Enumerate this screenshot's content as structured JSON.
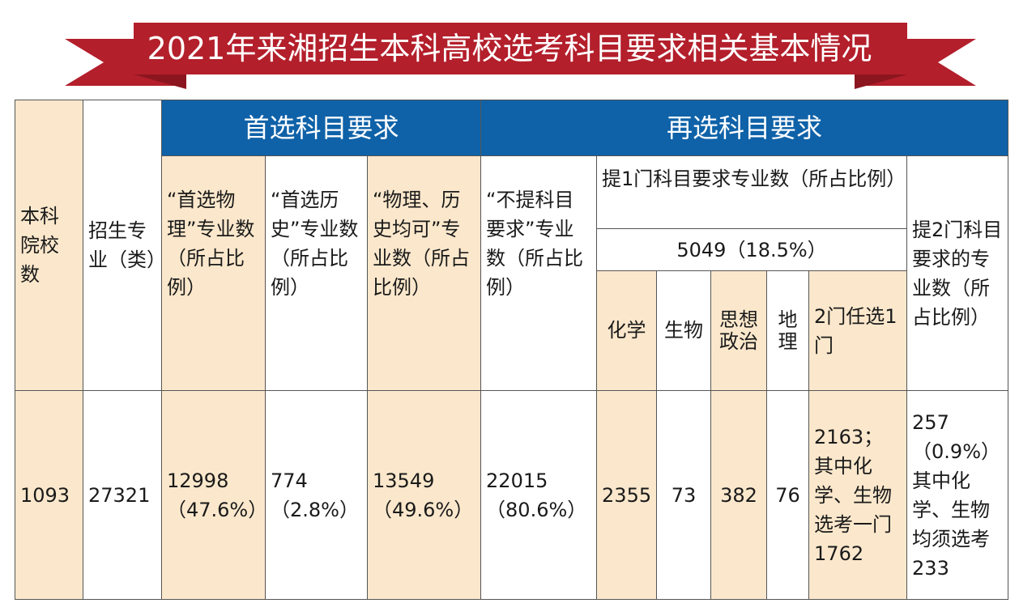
{
  "title": "2021年来湘招生本科高校选考科目要求相关基本情况",
  "colors": {
    "banner_red": "#b31f2b",
    "banner_dark": "#8c1620",
    "header_blue": "#0f62a8",
    "beige": "#fbe8cc"
  },
  "header": {
    "schools": "本科院校数",
    "majors": "招生专业（类）",
    "primary_group": "首选科目要求",
    "primary_physics": "“首选物理”专业数（所占比例）",
    "primary_history": "“首选历史”专业数（所占比例）",
    "primary_both": "“物理、历史均可”专业数（所占比例）",
    "secondary_group": "再选科目要求",
    "no_requirement": "“不提科目要求”专业数（所占比例）",
    "one_subject": "提1门科目要求专业数（所占比例）",
    "one_subject_total": "5049（18.5%）",
    "chemistry": "化学",
    "biology": "生物",
    "politics": "思想政治",
    "geography": "地理",
    "any_one_of_two": "2门任选1门",
    "two_subjects": "提2门科目要求的专业数（所占比例）"
  },
  "row": {
    "schools": "1093",
    "majors": "27321",
    "physics": "12998（47.6%）",
    "history": "774（2.8%）",
    "both": "13549（49.6%）",
    "no_requirement": "22015（80.6%）",
    "chemistry": "2355",
    "biology": "73",
    "politics": "382",
    "geography": "76",
    "any_one_of_two": "2163；其中化学、生物选考一门1762",
    "two_subjects": "257（0.9%）其中化学、生物均须选考233"
  }
}
